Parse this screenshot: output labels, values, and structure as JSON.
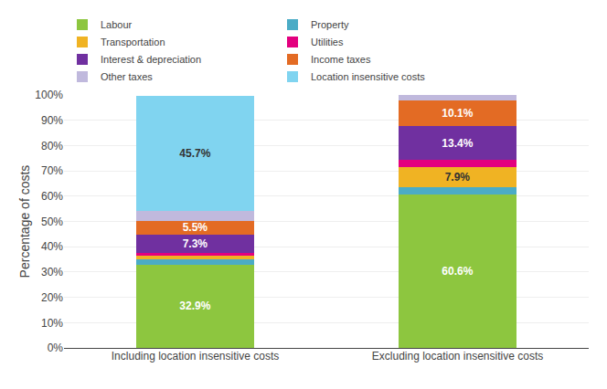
{
  "chart_data": {
    "type": "bar",
    "stacked": true,
    "categories": [
      "Including location insensitive costs",
      "Excluding location insensitive costs"
    ],
    "series": [
      {
        "name": "Labour",
        "color": "#8dc63f",
        "values": [
          32.9,
          60.6
        ],
        "value_labels": [
          "32.9%",
          "60.6%"
        ]
      },
      {
        "name": "Property",
        "color": "#4bacc6",
        "values": [
          2.1,
          3.1
        ]
      },
      {
        "name": "Transportation",
        "color": "#f0b323",
        "values": [
          1.5,
          7.9
        ],
        "value_labels": [
          null,
          "7.9%"
        ]
      },
      {
        "name": "Utilities",
        "color": "#e3007f",
        "values": [
          1.0,
          2.6
        ]
      },
      {
        "name": "Interest & depreciation",
        "color": "#7030a0",
        "values": [
          7.3,
          13.4
        ],
        "value_labels": [
          "7.3%",
          "13.4%"
        ]
      },
      {
        "name": "Income taxes",
        "color": "#e36b24",
        "values": [
          5.5,
          10.1
        ],
        "value_labels": [
          "5.5%",
          "10.1%"
        ]
      },
      {
        "name": "Other taxes",
        "color": "#c0b9dd",
        "values": [
          3.7,
          2.3
        ]
      },
      {
        "name": "Location insensitive costs",
        "color": "#80d4f0",
        "values": [
          45.7,
          0.0
        ],
        "value_labels": [
          "45.7%",
          null
        ]
      }
    ],
    "ylabel": "Percentage of costs",
    "ylim": [
      0,
      100
    ],
    "yticks": [
      {
        "value": 0,
        "label": "0%"
      },
      {
        "value": 10,
        "label": "10%"
      },
      {
        "value": 20,
        "label": "20%"
      },
      {
        "value": 30,
        "label": "30%"
      },
      {
        "value": 40,
        "label": "40%"
      },
      {
        "value": 50,
        "label": "50%"
      },
      {
        "value": 60,
        "label": "60%"
      },
      {
        "value": 70,
        "label": "70%"
      },
      {
        "value": 80,
        "label": "80%"
      },
      {
        "value": 90,
        "label": "90%"
      },
      {
        "value": 100,
        "label": "100%"
      }
    ],
    "grid": true,
    "legend": "top"
  }
}
